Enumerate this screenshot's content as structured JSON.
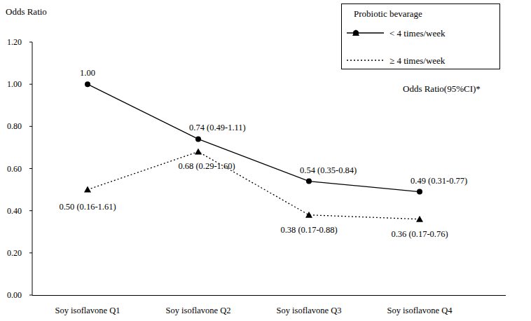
{
  "chart_data": {
    "type": "line",
    "y_label": "Odds Ratio",
    "legend_title": "Probiotic bevarage",
    "annotation": "Odds Ratio(95%CI)*",
    "categories": [
      "Soy isoflavone Q1",
      "Soy isoflavone Q2",
      "Soy isoflavone Q3",
      "Soy isoflavone Q4"
    ],
    "series": [
      {
        "name": "< 4 times/week",
        "color": "#000000",
        "marker": "circle",
        "line_style": "solid",
        "values": [
          1.0,
          0.74,
          0.54,
          0.49
        ],
        "value_labels": [
          "1.00",
          "0.74 (0.49-1.11)",
          "0.54 (0.35-0.84)",
          "0.49 (0.31-0.77)"
        ]
      },
      {
        "name": "≥ 4 times/week",
        "color": "#000000",
        "marker": "triangle",
        "line_style": "dotted",
        "values": [
          0.5,
          0.68,
          0.38,
          0.36
        ],
        "value_labels": [
          "0.50 (0.16-1.61)",
          "0.68 (0.29-1.60)",
          "0.38 (0.17-0.88)",
          "0.36 (0.17-0.76)"
        ]
      }
    ],
    "ylim": [
      0,
      1.2
    ],
    "yticks": [
      {
        "value": 0,
        "label": "0.00"
      },
      {
        "value": 0.2,
        "label": "0.20"
      },
      {
        "value": 0.4,
        "label": "0.40"
      },
      {
        "value": 0.6,
        "label": "0.60"
      },
      {
        "value": 0.8,
        "label": "0.80"
      },
      {
        "value": 1.0,
        "label": "1.00"
      },
      {
        "value": 1.2,
        "label": "1.20"
      }
    ],
    "grid": false,
    "data_labels": true,
    "legend": "upper right"
  }
}
